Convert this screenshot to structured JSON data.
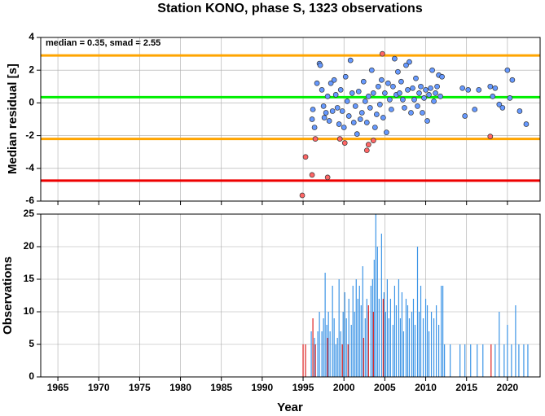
{
  "chart_data": [
    {
      "type": "scatter",
      "title": "Station KONO, phase S, 1323 observations",
      "ylabel": "Median residual [s]",
      "annotation": "median = 0.35, smad = 2.55",
      "xlim": [
        1962.9,
        2024
      ],
      "xticks": [
        1965,
        1970,
        1975,
        1980,
        1985,
        1990,
        1995,
        2000,
        2005,
        2010,
        2015,
        2020
      ],
      "ylim": [
        -6,
        4
      ],
      "yticks": [
        -6,
        -4,
        -2,
        0,
        2,
        4
      ],
      "grid": true,
      "hlines": [
        {
          "value": 2.9,
          "color": "#ffa500"
        },
        {
          "value": 0.35,
          "color": "#00ee00"
        },
        {
          "value": -2.2,
          "color": "#ffa500"
        },
        {
          "value": -4.75,
          "color": "#ee0000"
        }
      ],
      "series": [
        {
          "color": "#6699ff",
          "x": [
            1996.2,
            1996.1,
            1996.4,
            1996.7,
            1997.0,
            1997.1,
            1997.3,
            1997.5,
            1997.6,
            1997.8,
            1998.0,
            1998.2,
            1998.4,
            1998.6,
            1998.8,
            1999.0,
            1999.2,
            1999.4,
            1999.6,
            1999.8,
            2000.0,
            2000.2,
            2000.4,
            2000.6,
            2000.8,
            2001.0,
            2001.2,
            2001.4,
            2001.6,
            2001.8,
            2002.0,
            2002.2,
            2002.4,
            2002.6,
            2002.8,
            2003.0,
            2003.2,
            2003.4,
            2003.6,
            2003.8,
            2004.0,
            2004.2,
            2004.4,
            2004.6,
            2004.8,
            2005.0,
            2005.2,
            2005.4,
            2005.6,
            2005.8,
            2006.0,
            2006.2,
            2006.4,
            2006.6,
            2006.8,
            2007.0,
            2007.2,
            2007.4,
            2007.6,
            2007.8,
            2008.0,
            2008.2,
            2008.4,
            2008.6,
            2008.8,
            2009.0,
            2009.2,
            2009.4,
            2009.6,
            2009.8,
            2010.0,
            2010.2,
            2010.4,
            2010.6,
            2010.8,
            2011.0,
            2011.2,
            2011.4,
            2011.6,
            2011.8,
            2012.0,
            2014.5,
            2014.8,
            2015.2,
            2016.0,
            2016.5,
            2017.9,
            2018.2,
            2018.5,
            2019.0,
            2019.4,
            2020.0,
            2020.3,
            2020.6,
            2021.5,
            2022.3
          ],
          "values": [
            -0.4,
            -1.0,
            -1.5,
            1.2,
            2.4,
            2.3,
            0.8,
            -0.2,
            -0.9,
            -0.6,
            0.4,
            -1.1,
            1.2,
            -0.5,
            1.4,
            0.5,
            -0.3,
            -1.3,
            0.8,
            -0.5,
            -1.5,
            1.6,
            0.1,
            -0.8,
            2.6,
            0.6,
            -1.2,
            -0.2,
            -1.9,
            0.7,
            -1.0,
            -0.6,
            1.3,
            0.1,
            -1.2,
            0.4,
            -0.3,
            2.0,
            0.6,
            -1.5,
            -0.7,
            1.0,
            -0.1,
            1.4,
            -0.9,
            0.6,
            -1.8,
            1.2,
            0.2,
            -0.4,
            1.0,
            2.7,
            0.5,
            1.9,
            0.6,
            1.3,
            0.2,
            -0.3,
            2.3,
            0.8,
            2.5,
            -0.6,
            0.9,
            0.2,
            1.5,
            -0.2,
            0.6,
            1.0,
            -0.6,
            0.3,
            0.8,
            -1.1,
            0.5,
            0.9,
            2.0,
            0.1,
            0.6,
            1.0,
            1.7,
            0.4,
            1.6,
            0.9,
            -0.8,
            0.8,
            -0.4,
            0.8,
            1.0,
            0.4,
            0.9,
            -0.1,
            -0.3,
            2.0,
            0.3,
            1.4,
            -0.5,
            -1.3
          ]
        },
        {
          "color": "#ff6666",
          "x": [
            1994.9,
            1995.3,
            1996.1,
            1996.5,
            1998.0,
            1999.5,
            2000.1,
            2002.8,
            2003.0,
            2003.6,
            2004.7,
            2017.9
          ],
          "values": [
            -5.65,
            -3.3,
            -4.4,
            -2.2,
            -4.55,
            -2.2,
            -2.45,
            -2.9,
            -2.55,
            -2.3,
            3.0,
            -2.05
          ]
        }
      ]
    },
    {
      "type": "bar",
      "ylabel": "Observations",
      "xlabel": "Year",
      "xlim": [
        1962.9,
        2024
      ],
      "xticks": [
        1965,
        1970,
        1975,
        1980,
        1985,
        1990,
        1995,
        2000,
        2005,
        2010,
        2015,
        2020
      ],
      "ylim": [
        0,
        25
      ],
      "yticks": [
        0,
        5,
        10,
        15,
        20,
        25
      ],
      "grid": true,
      "series": [
        {
          "color": "#3d95e6",
          "x": [
            1996.0,
            1996.2,
            1996.4,
            1996.8,
            1997.0,
            1997.3,
            1997.5,
            1997.7,
            1997.9,
            1998.1,
            1998.3,
            1998.6,
            1998.8,
            1999.0,
            1999.2,
            1999.4,
            1999.6,
            1999.9,
            2000.1,
            2000.3,
            2000.6,
            2000.9,
            2001.1,
            2001.3,
            2001.5,
            2001.7,
            2001.9,
            2002.1,
            2002.3,
            2002.6,
            2002.8,
            2003.0,
            2003.3,
            2003.5,
            2003.7,
            2003.9,
            2004.1,
            2004.3,
            2004.6,
            2004.9,
            2005.1,
            2005.3,
            2005.5,
            2005.7,
            2006.0,
            2006.2,
            2006.4,
            2006.7,
            2006.9,
            2007.1,
            2007.3,
            2007.6,
            2007.8,
            2008.0,
            2008.3,
            2008.5,
            2008.7,
            2009.0,
            2009.2,
            2009.4,
            2009.7,
            2010.0,
            2010.2,
            2010.4,
            2010.7,
            2011.0,
            2011.3,
            2011.6,
            2011.9,
            2012.1,
            2012.3,
            2013.0,
            2014.2,
            2014.8,
            2015.5,
            2016.3,
            2017.0,
            2018.5,
            2019.0,
            2019.6,
            2020.0,
            2020.5,
            2021.0,
            2021.4,
            2022.0,
            2022.5
          ],
          "values": [
            7,
            5,
            6,
            7,
            10,
            7,
            9,
            16,
            8,
            10,
            7,
            14,
            9,
            5,
            6,
            15,
            7,
            10,
            13,
            9,
            12,
            8,
            14,
            10,
            15,
            12,
            14,
            11,
            17,
            9,
            12,
            10,
            14,
            15,
            18,
            25,
            20,
            12,
            22,
            13,
            10,
            15,
            9,
            12,
            8,
            14,
            11,
            15,
            9,
            13,
            7,
            12,
            11,
            9,
            10,
            12,
            8,
            20,
            10,
            14,
            9,
            12,
            11,
            7,
            10,
            9,
            11,
            8,
            14,
            14,
            5,
            5,
            5,
            5,
            5,
            5,
            5,
            5,
            10,
            5,
            8,
            5,
            11,
            5,
            5,
            5
          ]
        },
        {
          "color": "#dd2222",
          "x": [
            1995.0,
            1995.3,
            1996.2,
            1996.5,
            1998.0,
            1999.8,
            2000.5,
            2002.4,
            2003.0,
            2003.6,
            2004.8,
            2018.0
          ],
          "values": [
            5,
            5,
            9,
            5,
            6,
            5,
            5,
            6,
            11,
            10,
            12,
            5
          ]
        }
      ]
    }
  ]
}
